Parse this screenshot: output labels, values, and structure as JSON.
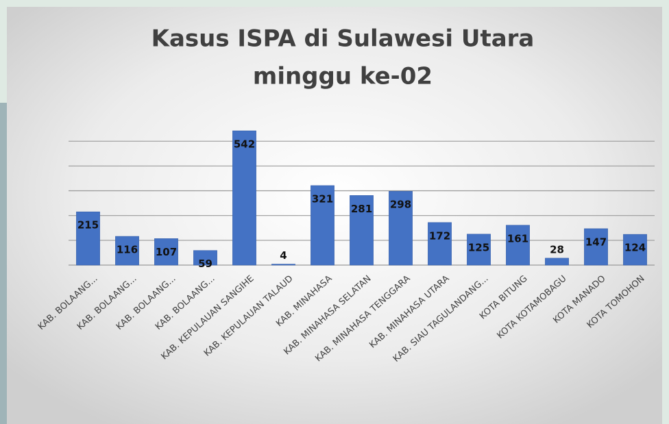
{
  "chart_data": {
    "type": "bar",
    "title": [
      "Kasus ISPA di Sulawesi Utara",
      "minggu ke-02"
    ],
    "categories": [
      "KAB. BOLAANG...",
      "KAB. BOLAANG...",
      "KAB. BOLAANG...",
      "KAB. BOLAANG...",
      "KAB. KEPULAUAN SANGIHE",
      "KAB. KEPULAUAN TALAUD",
      "KAB. MINAHASA",
      "KAB. MINAHASA SELATAN",
      "KAB. MINAHASA TENGGARA",
      "KAB. MINAHASA UTARA",
      "KAB. SIAU TAGULANDANG...",
      "KOTA BITUNG",
      "KOTA KOTAMOBAGU",
      "KOTA MANADO",
      "KOTA TOMOHON"
    ],
    "values": [
      215,
      116,
      107,
      59,
      542,
      4,
      321,
      281,
      298,
      172,
      125,
      161,
      28,
      147,
      124
    ],
    "color": "#4472c4",
    "ylim": [
      0,
      600
    ],
    "yticks": [
      0,
      100,
      200,
      300,
      400,
      500
    ],
    "grid": true
  }
}
